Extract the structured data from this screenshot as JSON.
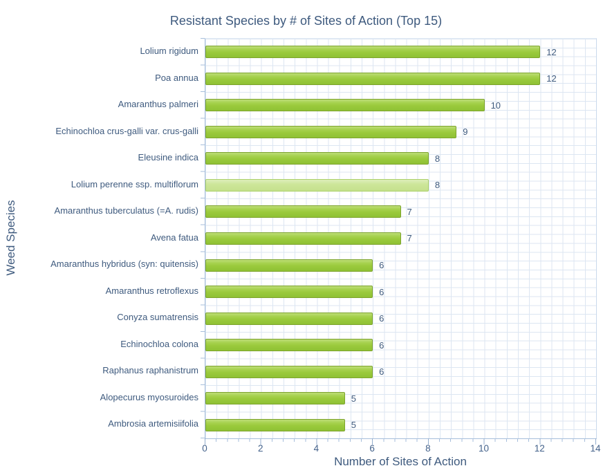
{
  "chart_data": {
    "type": "bar",
    "orientation": "horizontal",
    "title": "Resistant Species by # of Sites of Action (Top 15)",
    "xlabel": "Number of Sites of Action",
    "ylabel": "Weed Species",
    "xlim": [
      0,
      14
    ],
    "x_ticks": [
      0,
      2,
      4,
      6,
      8,
      10,
      12,
      14
    ],
    "minor_tick_step": 0.4,
    "grid": true,
    "legend": "none",
    "categories": [
      "Lolium rigidum",
      "Poa annua",
      "Amaranthus palmeri",
      "Echinochloa crus-galli var. crus-galli",
      "Eleusine indica",
      "Lolium perenne ssp. multiflorum",
      "Amaranthus tuberculatus (=A. rudis)",
      "Avena fatua",
      "Amaranthus hybridus (syn: quitensis)",
      "Amaranthus retroflexus",
      "Conyza sumatrensis",
      "Echinochloa colona",
      "Raphanus raphanistrum",
      "Alopecurus myosuroides",
      "Ambrosia artemisiifolia"
    ],
    "values": [
      12,
      12,
      10,
      9,
      8,
      8,
      7,
      7,
      6,
      6,
      6,
      6,
      6,
      5,
      5
    ],
    "bar_variants": [
      "normal",
      "normal",
      "normal",
      "normal",
      "normal",
      "light",
      "normal",
      "normal",
      "normal",
      "normal",
      "normal",
      "normal",
      "normal",
      "normal",
      "normal"
    ],
    "colors": {
      "bar_fill": "#9aca3c",
      "bar_border": "#7ca32d",
      "bar_fill_light": "#c5e18d",
      "bar_border_light": "#abd068",
      "text": "#3e5a7e",
      "gridline": "#dce6f2",
      "axis_line": "#a6bedb"
    }
  }
}
